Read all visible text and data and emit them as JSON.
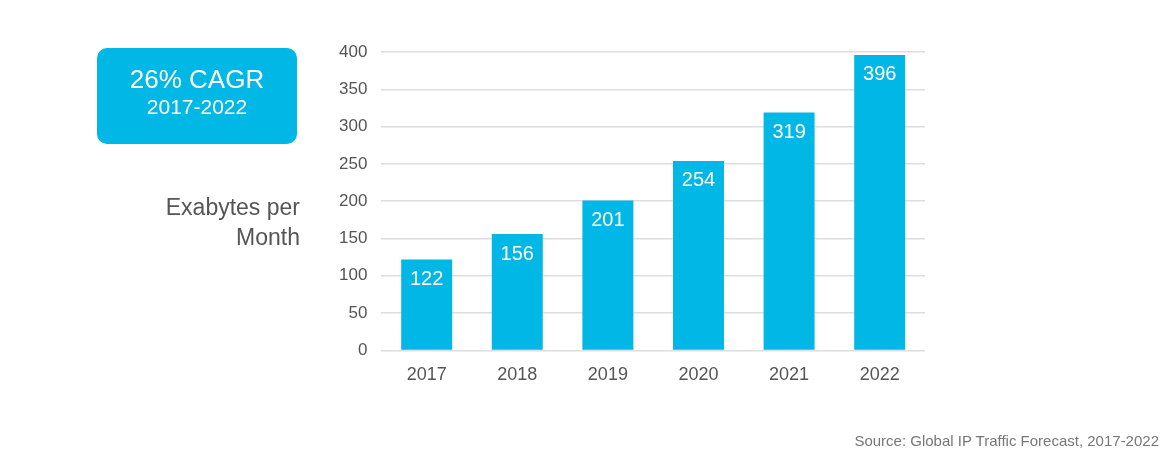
{
  "chart_data": {
    "type": "bar",
    "title": "26% CAGR",
    "subtitle": "2017-2022",
    "ylabel": "Exabytes per Month",
    "categories": [
      "2017",
      "2018",
      "2019",
      "2020",
      "2021",
      "2022"
    ],
    "values": [
      122,
      156,
      201,
      254,
      319,
      396
    ],
    "color": "#00b7e6",
    "ylim": [
      0,
      400
    ],
    "yticks": [
      0,
      50,
      100,
      150,
      200,
      250,
      300,
      350,
      400
    ],
    "grid": "y",
    "data_labels": true,
    "legend": false,
    "annotations": [
      "Source: Global IP Traffic Forecast, 2017-2022"
    ]
  }
}
